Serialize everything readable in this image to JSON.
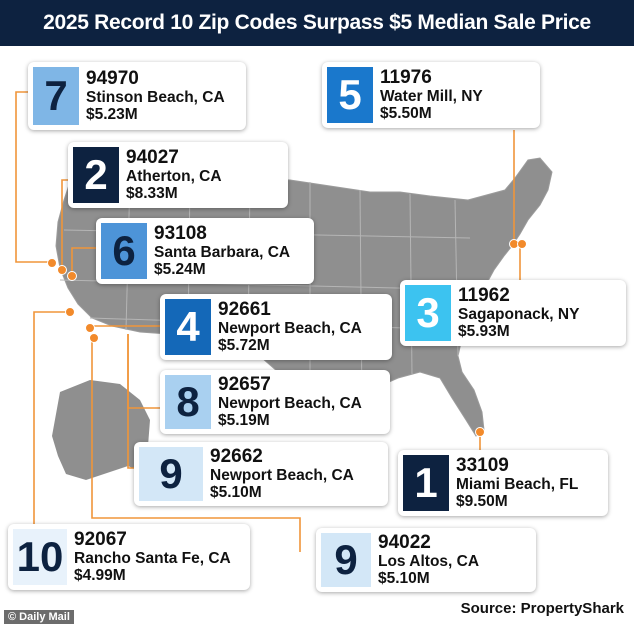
{
  "title": "2025 Record 10 Zip Codes Surpass $5 Median Sale Price",
  "source": "Source: PropertyShark",
  "credit": "© Daily Mail",
  "colors": {
    "title_bg": "#0d2240",
    "map": "#8f8f8f",
    "connector": "#f0953a"
  },
  "entries": [
    {
      "rank": "7",
      "zip": "94970",
      "location": "Stinson Beach, CA",
      "price": "$5.23M",
      "badge_bg": "#7fb6e6",
      "badge_fg": "#0d2240"
    },
    {
      "rank": "2",
      "zip": "94027",
      "location": "Atherton, CA",
      "price": "$8.33M",
      "badge_bg": "#0d2240",
      "badge_fg": "#ffffff"
    },
    {
      "rank": "6",
      "zip": "93108",
      "location": "Santa Barbara, CA",
      "price": "$5.24M",
      "badge_bg": "#4d94d8",
      "badge_fg": "#0d2240"
    },
    {
      "rank": "4",
      "zip": "92661",
      "location": "Newport Beach, CA",
      "price": "$5.72M",
      "badge_bg": "#1468b8",
      "badge_fg": "#ffffff"
    },
    {
      "rank": "8",
      "zip": "92657",
      "location": "Newport Beach, CA",
      "price": "$5.19M",
      "badge_bg": "#a9d0f0",
      "badge_fg": "#0d2240"
    },
    {
      "rank": "9",
      "zip": "92662",
      "location": "Newport Beach, CA",
      "price": "$5.10M",
      "badge_bg": "#d3e7f7",
      "badge_fg": "#0d2240"
    },
    {
      "rank": "10",
      "zip": "92067",
      "location": "Rancho Santa Fe, CA",
      "price": "$4.99M",
      "badge_bg": "#e8f2fb",
      "badge_fg": "#0d2240"
    },
    {
      "rank": "9",
      "zip": "94022",
      "location": "Los Altos, CA",
      "price": "$5.10M",
      "badge_bg": "#d3e7f7",
      "badge_fg": "#0d2240"
    },
    {
      "rank": "5",
      "zip": "11976",
      "location": "Water Mill, NY",
      "price": "$5.50M",
      "badge_bg": "#1a78cc",
      "badge_fg": "#ffffff"
    },
    {
      "rank": "3",
      "zip": "11962",
      "location": "Sagaponack, NY",
      "price": "$5.93M",
      "badge_bg": "#3cc3f0",
      "badge_fg": "#ffffff"
    },
    {
      "rank": "1",
      "zip": "33109",
      "location": "Miami Beach, FL",
      "price": "$9.50M",
      "badge_bg": "#0d2240",
      "badge_fg": "#ffffff"
    }
  ]
}
